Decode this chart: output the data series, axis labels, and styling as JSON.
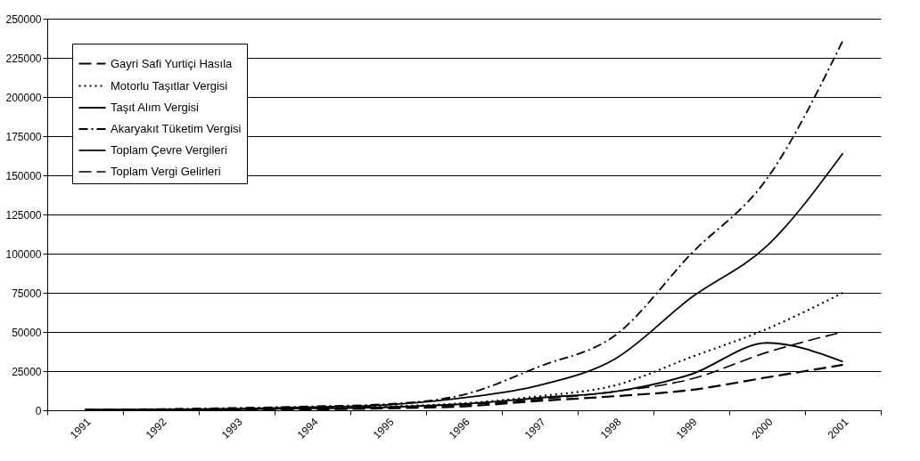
{
  "chart_data": {
    "type": "line",
    "categories": [
      "1991",
      "1992",
      "1993",
      "1994",
      "1995",
      "1996",
      "1997",
      "1998",
      "1999",
      "2000",
      "2001"
    ],
    "ylim": [
      0,
      250000
    ],
    "yticks": [
      0,
      25000,
      50000,
      75000,
      100000,
      125000,
      150000,
      175000,
      200000,
      225000,
      250000
    ],
    "grid": "y",
    "legend": "top left",
    "series": [
      {
        "name": "Gayri Safi Yurtiçi Hasıla",
        "color": "#000000",
        "line_style": "dashed",
        "values": [
          100,
          200,
          400,
          600,
          1200,
          2500,
          6000,
          9000,
          13000,
          21000,
          29000
        ]
      },
      {
        "name": "Motorlu Taşıtlar Vergisi",
        "color": "#000000",
        "line_style": "dotted",
        "values": [
          200,
          400,
          800,
          1500,
          2500,
          4500,
          9000,
          16000,
          34000,
          52000,
          75000
        ]
      },
      {
        "name": "Taşıt Alım Vergisi",
        "color": "#000000",
        "line_style": "solid",
        "values": [
          200,
          300,
          700,
          1200,
          2000,
          4000,
          8000,
          12000,
          23000,
          43000,
          31000
        ]
      },
      {
        "name": "Akaryakıt Tüketim Vergisi",
        "color": "#000000",
        "line_style": "dashdot",
        "values": [
          400,
          800,
          1500,
          2500,
          4000,
          10000,
          28000,
          48000,
          100000,
          148000,
          236000
        ]
      },
      {
        "name": "Toplam Çevre Vergileri",
        "color": "#000000",
        "line_style": "solid",
        "values": [
          300,
          500,
          1000,
          2000,
          3500,
          8000,
          16000,
          33000,
          72000,
          105000,
          164000
        ]
      },
      {
        "name": "Toplam Vergi Gelirleri",
        "color": "#000000",
        "line_style": "dashed",
        "values": [
          200,
          300,
          500,
          1000,
          1800,
          3500,
          7000,
          12000,
          20000,
          37000,
          50000
        ]
      }
    ]
  }
}
